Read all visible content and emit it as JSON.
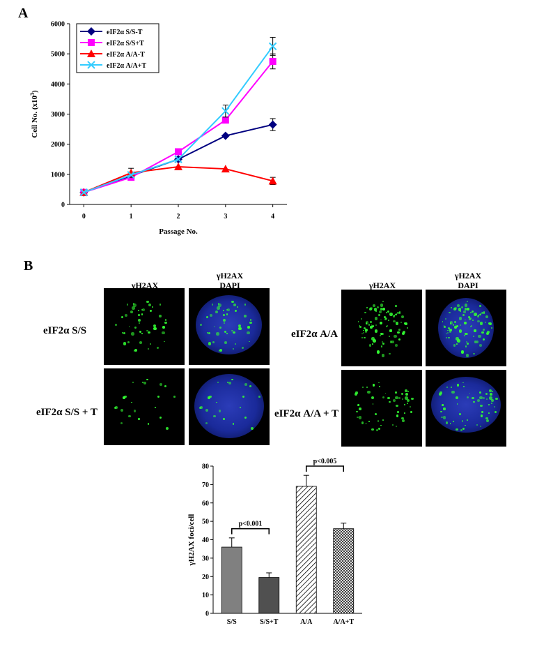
{
  "panels": {
    "a": "A",
    "b": "B"
  },
  "chart_data": [
    {
      "type": "line",
      "xlabel": "Passage No.",
      "ylabel": "Cell No. (x10",
      "ylabel_exp": "3",
      "ylabel_close": ")",
      "x": [
        0,
        1,
        2,
        3,
        4
      ],
      "xlim": [
        -0.3,
        4.3
      ],
      "ylim": [
        0,
        6000
      ],
      "yticks": [
        0,
        1000,
        2000,
        3000,
        4000,
        5000,
        6000
      ],
      "legend_position": "top-left",
      "series": [
        {
          "name": "eIF2α S/S-T",
          "color": "#000080",
          "marker": "diamond",
          "values": [
            400,
            950,
            1500,
            2280,
            2650
          ],
          "err": [
            0,
            0,
            80,
            0,
            200
          ]
        },
        {
          "name": "eIF2α S/S+T",
          "color": "#ff00ff",
          "marker": "square",
          "values": [
            400,
            900,
            1750,
            2800,
            4750
          ],
          "err": [
            0,
            0,
            0,
            0,
            250
          ]
        },
        {
          "name": "eIF2α A/A-T",
          "color": "#ff0000",
          "marker": "triangle",
          "values": [
            400,
            1050,
            1250,
            1180,
            780
          ],
          "err": [
            0,
            150,
            0,
            0,
            120
          ]
        },
        {
          "name": "eIF2α A/A+T",
          "color": "#33ccff",
          "marker": "x",
          "values": [
            400,
            980,
            1500,
            3100,
            5250
          ],
          "err": [
            0,
            0,
            0,
            200,
            300
          ]
        }
      ]
    },
    {
      "type": "bar",
      "ylabel": "γH2AX foci/cell",
      "categories": [
        "S/S",
        "S/S+T",
        "A/A",
        "A/A+T"
      ],
      "values": [
        36,
        19.5,
        69,
        46
      ],
      "err": [
        5,
        2.5,
        6,
        3
      ],
      "ylim": [
        0,
        80
      ],
      "yticks": [
        0,
        10,
        20,
        30,
        40,
        50,
        60,
        70,
        80
      ],
      "fills": [
        "#808080",
        "#505050",
        "hatch",
        "crosshatch"
      ],
      "annotations": [
        {
          "text": "p<0.001",
          "from": 0,
          "to": 1
        },
        {
          "text": "p<0.005",
          "from": 2,
          "to": 3
        }
      ]
    }
  ],
  "micrographs": {
    "col_headers": [
      "γH2AX",
      "γH2AX",
      "DAPI"
    ],
    "rows": [
      "eIF2α S/S",
      "eIF2α S/S + T",
      "eIF2α A/A",
      "eIF2α A/A + T"
    ]
  }
}
